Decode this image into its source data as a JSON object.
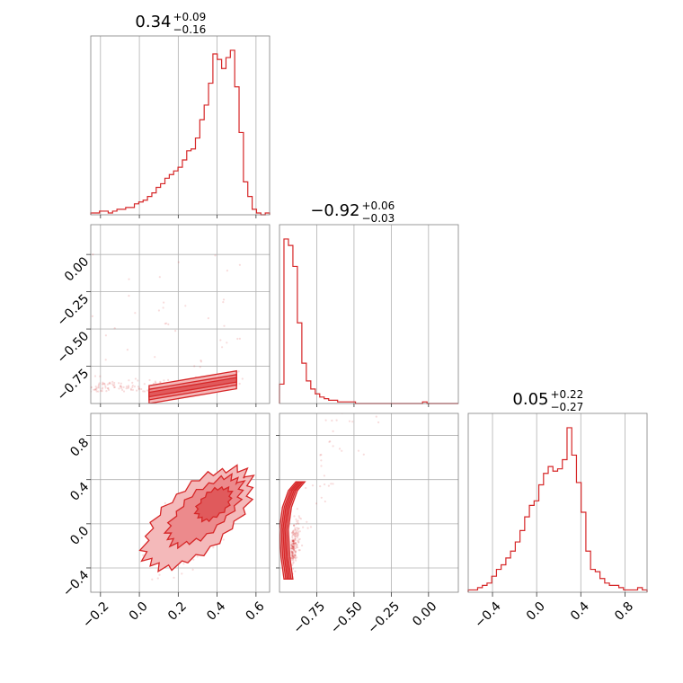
{
  "colors": {
    "series": "#d62728",
    "fill_light": "#f4b9ba",
    "fill_mid": "#ec8a8c",
    "grid": "#b0b0b0",
    "frame": "#808080"
  },
  "chart_data": {
    "type": "corner",
    "grid": true,
    "params": [
      {
        "range": [
          -0.25,
          0.67
        ],
        "median": "0.34",
        "plus": "+0.09",
        "minus": "−0.16",
        "ticks": [
          -0.2,
          0.0,
          0.2,
          0.4,
          0.6
        ],
        "tick_labels": [
          "−0.2",
          "0.0",
          "0.2",
          "0.4",
          "0.6"
        ]
      },
      {
        "range": [
          -1.0,
          0.2
        ],
        "median": "−0.92",
        "plus": "+0.06",
        "minus": "−0.03",
        "ticks": [
          -0.75,
          -0.5,
          -0.25,
          0.0
        ],
        "tick_labels": [
          "−0.75",
          "−0.50",
          "−0.25",
          "0.00"
        ]
      },
      {
        "range": [
          -0.62,
          1.0
        ],
        "median": "0.05",
        "plus": "+0.22",
        "minus": "−0.27",
        "ticks": [
          -0.4,
          0.0,
          0.4,
          0.8
        ],
        "tick_labels": [
          "−0.4",
          "0.0",
          "0.4",
          "0.8"
        ]
      }
    ],
    "hist": [
      {
        "counts": [
          1,
          1,
          2,
          2,
          1,
          2,
          3,
          3,
          4,
          4,
          6,
          7,
          8,
          10,
          12,
          15,
          17,
          20,
          22,
          24,
          26,
          30,
          35,
          36,
          42,
          52,
          60,
          72,
          88,
          85,
          80,
          86,
          90,
          70,
          45,
          18,
          10,
          3,
          1,
          0,
          1
        ]
      },
      {
        "counts": [
          12,
          102,
          98,
          85,
          50,
          25,
          14,
          9,
          6,
          4,
          3,
          2,
          2,
          1,
          1,
          1,
          1,
          0,
          0,
          0,
          0,
          0,
          0,
          0,
          0,
          0,
          0,
          0,
          0,
          0,
          0,
          0,
          1,
          0,
          0,
          0,
          0,
          0,
          0,
          0
        ]
      },
      {
        "counts": [
          1,
          1,
          2,
          3,
          4,
          7,
          10,
          12,
          15,
          18,
          22,
          27,
          33,
          38,
          40,
          47,
          52,
          55,
          53,
          54,
          58,
          72,
          60,
          48,
          35,
          18,
          10,
          9,
          6,
          4,
          3,
          3,
          2,
          1,
          1,
          1,
          2,
          1
        ]
      }
    ]
  }
}
